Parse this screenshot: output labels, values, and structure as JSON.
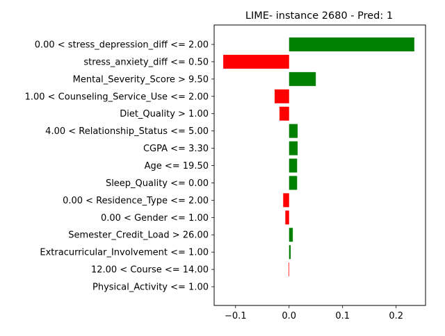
{
  "chart_data": {
    "type": "bar",
    "orientation": "horizontal",
    "title": "LIME- instance 2680 - Pred: 1",
    "xlabel": "",
    "ylabel": "",
    "xlim": [
      -0.14,
      0.255
    ],
    "xticks": [
      -0.1,
      0.0,
      0.1,
      0.2
    ],
    "xtick_labels": [
      "−0.1",
      "0.0",
      "0.1",
      "0.2"
    ],
    "grid": false,
    "legend": "none",
    "colors": {
      "positive": "#008000",
      "negative": "#ff0000"
    },
    "categories": [
      "0.00 < stress_depression_diff <= 2.00",
      "stress_anxiety_diff <= 0.50",
      "Mental_Severity_Score > 9.50",
      "1.00 < Counseling_Service_Use <= 2.00",
      "Diet_Quality > 1.00",
      "4.00 < Relationship_Status <= 5.00",
      "CGPA <= 3.30",
      "Age <= 19.50",
      "Sleep_Quality <= 0.00",
      "0.00 < Residence_Type <= 2.00",
      "0.00 < Gender <= 1.00",
      "Semester_Credit_Load > 26.00",
      "Extracurricular_Involvement <= 1.00",
      "12.00 < Course <= 14.00",
      "Physical_Activity <= 1.00"
    ],
    "values": [
      0.234,
      -0.123,
      0.05,
      -0.027,
      -0.018,
      0.016,
      0.016,
      0.015,
      0.015,
      -0.011,
      -0.007,
      0.007,
      0.003,
      -0.001,
      0.0
    ]
  }
}
